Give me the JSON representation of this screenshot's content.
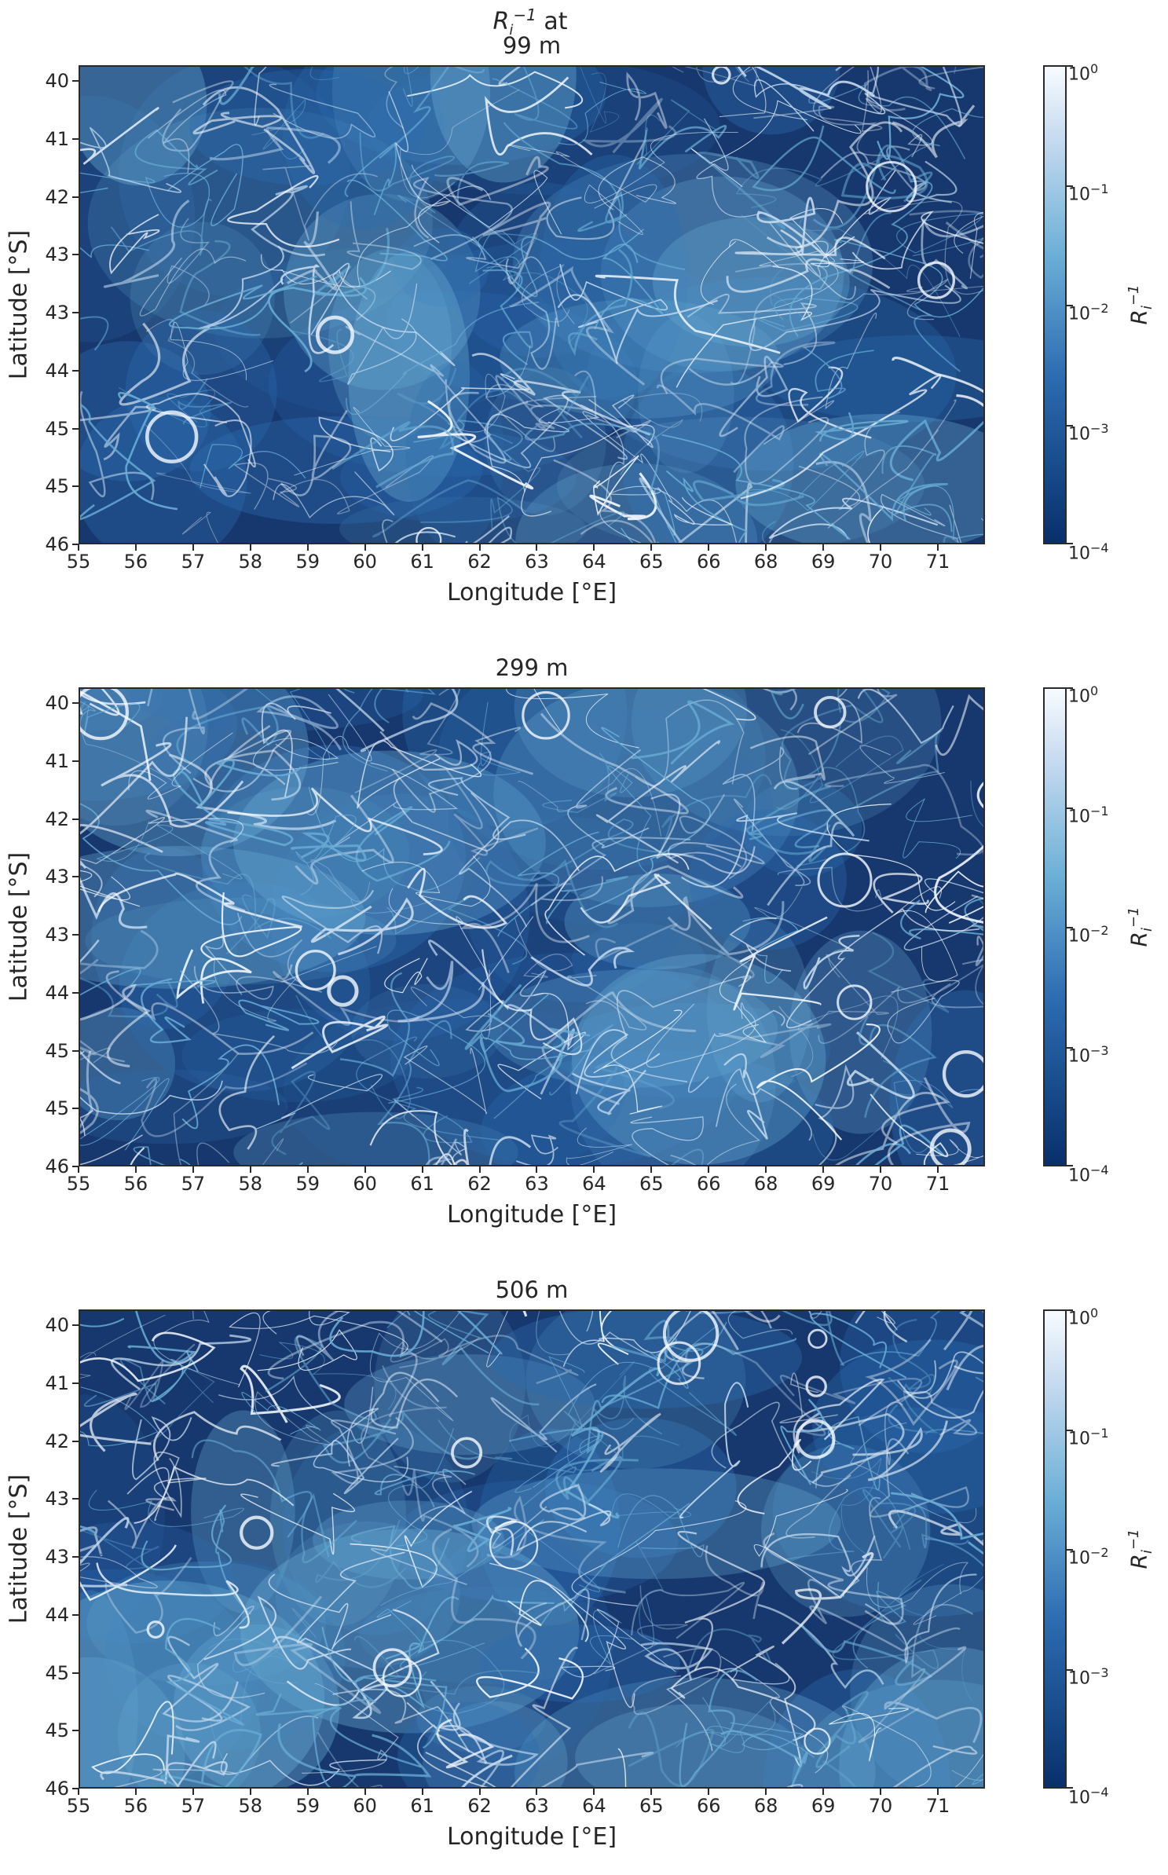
{
  "figure_title": {
    "main": "R",
    "sub": "i",
    "sup": "−1",
    "after": " at"
  },
  "chart_data": [
    {
      "type": "heatmap",
      "title": "99 m",
      "xlabel": "Longitude [°E]",
      "ylabel": "Latitude [°S]",
      "x_ticks": [
        "55",
        "56",
        "57",
        "58",
        "59",
        "60",
        "61",
        "62",
        "63",
        "64",
        "65",
        "66",
        "68",
        "69",
        "70",
        "71"
      ],
      "y_ticks": [
        "40",
        "41",
        "42",
        "43",
        "43",
        "44",
        "45",
        "45",
        "46"
      ],
      "xlim": [
        55,
        71.5
      ],
      "ylim": [
        40,
        46
      ],
      "colorbar": {
        "label": "R_i^-1",
        "scale": "log",
        "range": [
          0.0001,
          1
        ],
        "ticks": [
          "10^0",
          "10^-1",
          "10^-2",
          "10^-3",
          "10^-4"
        ],
        "colormap": "Blues_r",
        "colors": [
          "#08306b",
          "#2c6cb0",
          "#6aaed6",
          "#c6dbef",
          "#f7fbff"
        ]
      }
    },
    {
      "type": "heatmap",
      "title": "299 m",
      "xlabel": "Longitude [°E]",
      "ylabel": "Latitude [°S]",
      "x_ticks": [
        "55",
        "56",
        "57",
        "58",
        "59",
        "60",
        "61",
        "62",
        "63",
        "64",
        "65",
        "66",
        "68",
        "69",
        "70",
        "71"
      ],
      "y_ticks": [
        "40",
        "41",
        "42",
        "43",
        "43",
        "44",
        "45",
        "45",
        "46"
      ],
      "xlim": [
        55,
        71.5
      ],
      "ylim": [
        40,
        46
      ],
      "colorbar": {
        "label": "R_i^-1",
        "scale": "log",
        "range": [
          0.0001,
          1
        ],
        "ticks": [
          "10^0",
          "10^-1",
          "10^-2",
          "10^-3",
          "10^-4"
        ],
        "colormap": "Blues_r",
        "colors": [
          "#08306b",
          "#2c6cb0",
          "#6aaed6",
          "#c6dbef",
          "#f7fbff"
        ]
      }
    },
    {
      "type": "heatmap",
      "title": "506 m",
      "xlabel": "Longitude [°E]",
      "ylabel": "Latitude [°S]",
      "x_ticks": [
        "55",
        "56",
        "57",
        "58",
        "59",
        "60",
        "61",
        "62",
        "63",
        "64",
        "65",
        "66",
        "68",
        "69",
        "70",
        "71"
      ],
      "y_ticks": [
        "40",
        "41",
        "42",
        "43",
        "43",
        "44",
        "45",
        "45",
        "46"
      ],
      "xlim": [
        55,
        71.5
      ],
      "ylim": [
        40,
        46
      ],
      "colorbar": {
        "label": "R_i^-1",
        "scale": "log",
        "range": [
          0.0001,
          1
        ],
        "ticks": [
          "10^0",
          "10^-1",
          "10^-2",
          "10^-3",
          "10^-4"
        ],
        "colormap": "Blues_r",
        "colors": [
          "#08306b",
          "#2c6cb0",
          "#6aaed6",
          "#c6dbef",
          "#f7fbff"
        ]
      }
    }
  ]
}
